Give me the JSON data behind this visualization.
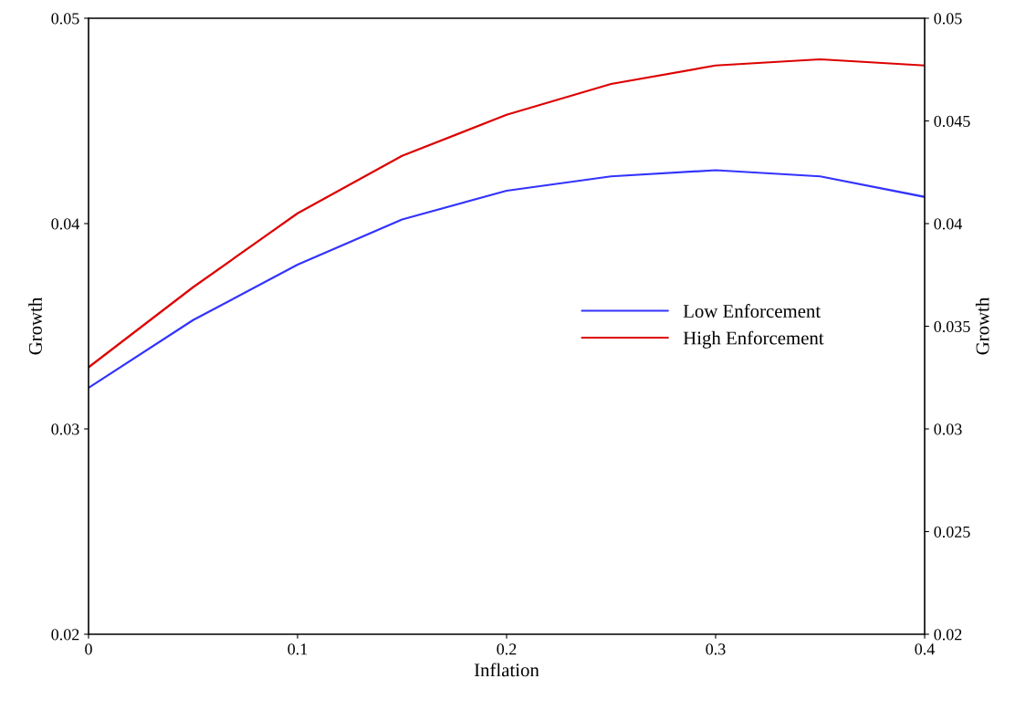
{
  "chart_data": {
    "type": "line",
    "xlabel": "Inflation",
    "ylabel": "Growth",
    "y2label": "Growth",
    "x": [
      0,
      0.05,
      0.1,
      0.15,
      0.2,
      0.25,
      0.3,
      0.35,
      0.4
    ],
    "series": [
      {
        "name": "Low Enforcement",
        "color": "#3333ff",
        "values": [
          0.032,
          0.0353,
          0.038,
          0.0402,
          0.0416,
          0.0423,
          0.0426,
          0.0423,
          0.0413
        ]
      },
      {
        "name": "High Enforcement",
        "color": "#dd0000",
        "values": [
          0.033,
          0.0369,
          0.0405,
          0.0433,
          0.0453,
          0.0468,
          0.0477,
          0.048,
          0.0477
        ]
      }
    ],
    "xlim": [
      0,
      0.4
    ],
    "xticks": [
      0,
      0.1,
      0.2,
      0.3,
      0.4
    ],
    "ylim": [
      0.02,
      0.05
    ],
    "yticks": [
      0.02,
      0.03,
      0.04,
      0.05
    ],
    "y2lim": [
      0.02,
      0.05
    ],
    "y2ticks": [
      0.02,
      0.025,
      0.03,
      0.035,
      0.04,
      0.045,
      0.05
    ],
    "legend": "right",
    "grid": false,
    "marker": "none",
    "line_style": "solid"
  }
}
